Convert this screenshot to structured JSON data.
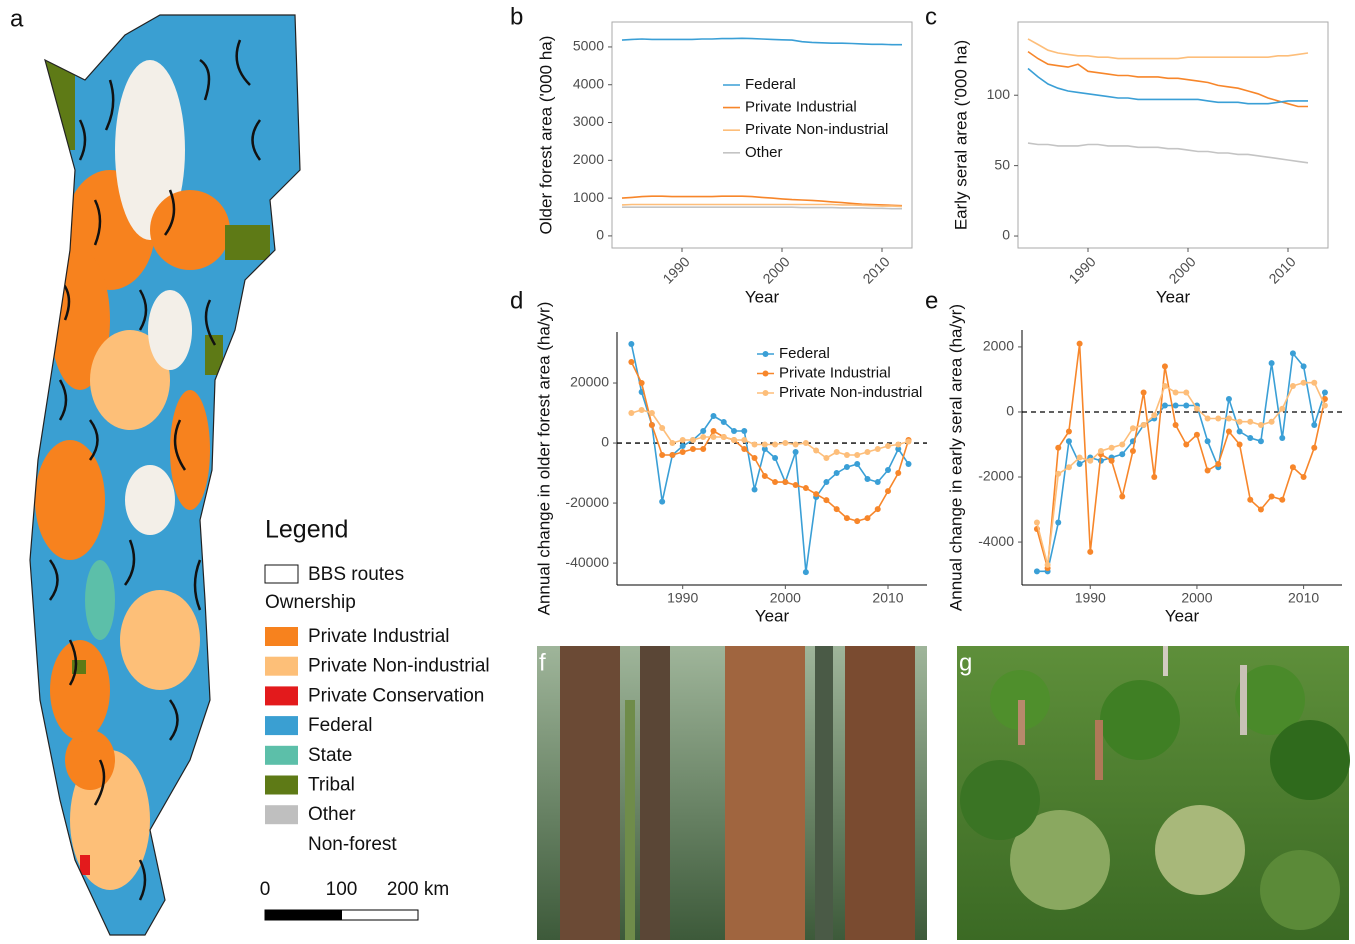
{
  "panel_label": "a",
  "map_legend": {
    "title": "Legend",
    "routes": "BBS routes",
    "ownership_title": "Ownership",
    "ownership": [
      {
        "label": "Private Industrial",
        "color": "#f7821e"
      },
      {
        "label": "Private Non-industrial",
        "color": "#fdbf78"
      },
      {
        "label": "Private Conservation",
        "color": "#e31a1c"
      },
      {
        "label": "Federal",
        "color": "#3a9fd2"
      },
      {
        "label": "State",
        "color": "#5cbfa9"
      },
      {
        "label": "Tribal",
        "color": "#5e7a16"
      },
      {
        "label": "Other",
        "color": "#bfbfbf"
      },
      {
        "label": "Non-forest",
        "color": "#ffffff"
      }
    ],
    "scale_ticks": [
      0,
      100,
      {
        "value": 200,
        "label": "200 km"
      }
    ]
  },
  "photos": [
    {
      "panel_label": "f"
    },
    {
      "panel_label": "g"
    }
  ],
  "chart_data": [
    {
      "type": "line",
      "panel_label": "b",
      "y_label": "Older forest area ('000 ha)",
      "x_label": "Year",
      "x": [
        1984,
        1985,
        1986,
        1987,
        1988,
        1989,
        1990,
        1991,
        1992,
        1993,
        1994,
        1995,
        1996,
        1997,
        1998,
        1999,
        2000,
        2001,
        2002,
        2003,
        2004,
        2005,
        2006,
        2007,
        2008,
        2009,
        2010,
        2011,
        2012
      ],
      "xlim": [
        1983,
        2013
      ],
      "xticks": [
        1990,
        2000,
        2010
      ],
      "xtick_rotation": 45,
      "ylim": [
        -320,
        5660
      ],
      "yticks": [
        0,
        1000,
        2000,
        3000,
        4000,
        5000
      ],
      "frame": "box",
      "markers": false,
      "legend": "center",
      "series": [
        {
          "name": "Federal",
          "color": "#3a9fd6",
          "values": [
            5180,
            5200,
            5210,
            5200,
            5200,
            5200,
            5200,
            5200,
            5210,
            5210,
            5220,
            5220,
            5230,
            5220,
            5210,
            5200,
            5190,
            5180,
            5140,
            5120,
            5110,
            5100,
            5100,
            5090,
            5080,
            5070,
            5070,
            5060,
            5060
          ]
        },
        {
          "name": "Private Industrial",
          "color": "#f7862a",
          "values": [
            1000,
            1020,
            1040,
            1050,
            1050,
            1040,
            1040,
            1040,
            1040,
            1040,
            1050,
            1050,
            1050,
            1040,
            1020,
            1000,
            980,
            960,
            950,
            940,
            920,
            900,
            880,
            860,
            840,
            830,
            820,
            810,
            800
          ]
        },
        {
          "name": "Private Non-industrial",
          "color": "#fdbe7a",
          "values": [
            820,
            830,
            830,
            830,
            830,
            830,
            830,
            830,
            830,
            830,
            830,
            830,
            830,
            830,
            830,
            830,
            830,
            830,
            830,
            830,
            830,
            830,
            820,
            820,
            810,
            800,
            790,
            790,
            780
          ]
        },
        {
          "name": "Other",
          "color": "#c4c4c4",
          "values": [
            760,
            760,
            760,
            760,
            760,
            760,
            760,
            760,
            760,
            760,
            760,
            760,
            760,
            760,
            760,
            760,
            760,
            760,
            750,
            750,
            750,
            750,
            740,
            740,
            740,
            730,
            730,
            720,
            720
          ]
        }
      ]
    },
    {
      "type": "line",
      "panel_label": "c",
      "y_label": "Early seral area ('000 ha)",
      "x_label": "Year",
      "x": [
        1984,
        1985,
        1986,
        1987,
        1988,
        1989,
        1990,
        1991,
        1992,
        1993,
        1994,
        1995,
        1996,
        1997,
        1998,
        1999,
        2000,
        2001,
        2002,
        2003,
        2004,
        2005,
        2006,
        2007,
        2008,
        2009,
        2010,
        2011,
        2012
      ],
      "xlim": [
        1983,
        2014
      ],
      "xticks": [
        1990,
        2000,
        2010
      ],
      "xtick_rotation": 45,
      "ylim": [
        -8.5,
        152
      ],
      "yticks": [
        0,
        50,
        100
      ],
      "frame": "box",
      "markers": false,
      "series": [
        {
          "color": "#fdbe7a",
          "values": [
            140,
            136,
            132,
            130,
            129,
            128,
            128,
            127,
            127,
            126,
            126,
            126,
            126,
            126,
            126,
            126,
            127,
            127,
            127,
            127,
            127,
            127,
            127,
            127,
            127,
            128,
            128,
            129,
            130
          ]
        },
        {
          "color": "#f7862a",
          "values": [
            131,
            126,
            122,
            121,
            120,
            122,
            117,
            116,
            115,
            114,
            114,
            113,
            113,
            113,
            112,
            112,
            111,
            110,
            109,
            107,
            106,
            105,
            103,
            101,
            98,
            96,
            94,
            92,
            92
          ]
        },
        {
          "color": "#3a9fd6",
          "values": [
            119,
            113,
            108,
            105,
            103,
            102,
            101,
            100,
            99,
            98,
            98,
            97,
            97,
            97,
            97,
            97,
            97,
            97,
            96,
            95,
            95,
            95,
            94,
            94,
            94,
            95,
            96,
            96,
            96
          ]
        },
        {
          "color": "#c4c4c4",
          "values": [
            66,
            65,
            65,
            64,
            64,
            64,
            65,
            65,
            64,
            64,
            64,
            63,
            63,
            63,
            62,
            62,
            61,
            60,
            60,
            59,
            59,
            58,
            58,
            57,
            56,
            55,
            54,
            53,
            52
          ]
        }
      ]
    },
    {
      "type": "line",
      "panel_label": "d",
      "y_label": "Annual change in older forest area (ha/yr)",
      "x_label": "Year",
      "x": [
        1985,
        1986,
        1987,
        1988,
        1989,
        1990,
        1991,
        1992,
        1993,
        1994,
        1995,
        1996,
        1997,
        1998,
        1999,
        2000,
        2001,
        2002,
        2003,
        2004,
        2005,
        2006,
        2007,
        2008,
        2009,
        2010,
        2011,
        2012
      ],
      "xlim": [
        1983.6,
        2013.8
      ],
      "xticks": [
        1990,
        2000,
        2010
      ],
      "ylim": [
        -47300,
        37000
      ],
      "yticks": [
        -40000,
        -20000,
        0,
        20000
      ],
      "hline": 0,
      "frame": "axes",
      "markers": true,
      "legend": "top-right",
      "series": [
        {
          "name": "Federal",
          "color": "#3a9fd6",
          "values": [
            33000,
            17000,
            6000,
            -19500,
            -4000,
            -1000,
            1000,
            4000,
            9000,
            7000,
            4000,
            4000,
            -15500,
            -2000,
            -5000,
            -13000,
            -3000,
            -43000,
            -18000,
            -13000,
            -10000,
            -8000,
            -7000,
            -12000,
            -13000,
            -9000,
            -2000,
            -7000
          ]
        },
        {
          "name": "Private Industrial",
          "color": "#f7862a",
          "values": [
            27000,
            20000,
            6000,
            -4000,
            -4000,
            -3000,
            -2000,
            -2000,
            4000,
            2000,
            1000,
            -2000,
            -5000,
            -11000,
            -13000,
            -13000,
            -14000,
            -15000,
            -17000,
            -19000,
            -22000,
            -25000,
            -26000,
            -25000,
            -22000,
            -16000,
            -10000,
            1000
          ]
        },
        {
          "name": "Private Non-industrial",
          "color": "#fdbe7a",
          "values": [
            10000,
            11000,
            10000,
            5000,
            0,
            1000,
            1000,
            2000,
            2000,
            2000,
            1000,
            1000,
            -500,
            -500,
            -500,
            0,
            -500,
            0,
            -2500,
            -5000,
            -3000,
            -4000,
            -4000,
            -3000,
            -2000,
            -1000,
            -500,
            500
          ]
        }
      ]
    },
    {
      "type": "line",
      "panel_label": "e",
      "y_label": "Annual change in early seral area (ha/yr)",
      "x_label": "Year",
      "x": [
        1985,
        1986,
        1987,
        1988,
        1989,
        1990,
        1991,
        1992,
        1993,
        1994,
        1995,
        1996,
        1997,
        1998,
        1999,
        2000,
        2001,
        2002,
        2003,
        2004,
        2005,
        2006,
        2007,
        2008,
        2009,
        2010,
        2011,
        2012
      ],
      "xlim": [
        1983.6,
        2013.6
      ],
      "xticks": [
        1990,
        2000,
        2010
      ],
      "ylim": [
        -5320,
        2520
      ],
      "yticks": [
        -4000,
        -2000,
        0,
        2000
      ],
      "hline": 0,
      "frame": "axes",
      "markers": true,
      "series": [
        {
          "color": "#3a9fd6",
          "values": [
            -4900,
            -4900,
            -3400,
            -900,
            -1600,
            -1400,
            -1500,
            -1400,
            -1300,
            -900,
            -400,
            -200,
            200,
            200,
            200,
            200,
            -900,
            -1700,
            400,
            -600,
            -800,
            -900,
            1500,
            -800,
            1800,
            1400,
            -400,
            600
          ]
        },
        {
          "color": "#f7862a",
          "values": [
            -3600,
            -4800,
            -1100,
            -600,
            2100,
            -4300,
            -1300,
            -1500,
            -2600,
            -1200,
            600,
            -2000,
            1400,
            -400,
            -1000,
            -700,
            -1800,
            -1600,
            -600,
            -1000,
            -2700,
            -3000,
            -2600,
            -2700,
            -1700,
            -2000,
            -1100,
            400
          ]
        },
        {
          "color": "#fdbe7a",
          "values": [
            -3400,
            -4700,
            -1900,
            -1700,
            -1400,
            -1500,
            -1200,
            -1100,
            -1000,
            -500,
            -400,
            -100,
            800,
            600,
            600,
            100,
            -200,
            -200,
            -200,
            -300,
            -300,
            -400,
            -300,
            100,
            800,
            900,
            900,
            200
          ]
        }
      ]
    }
  ]
}
